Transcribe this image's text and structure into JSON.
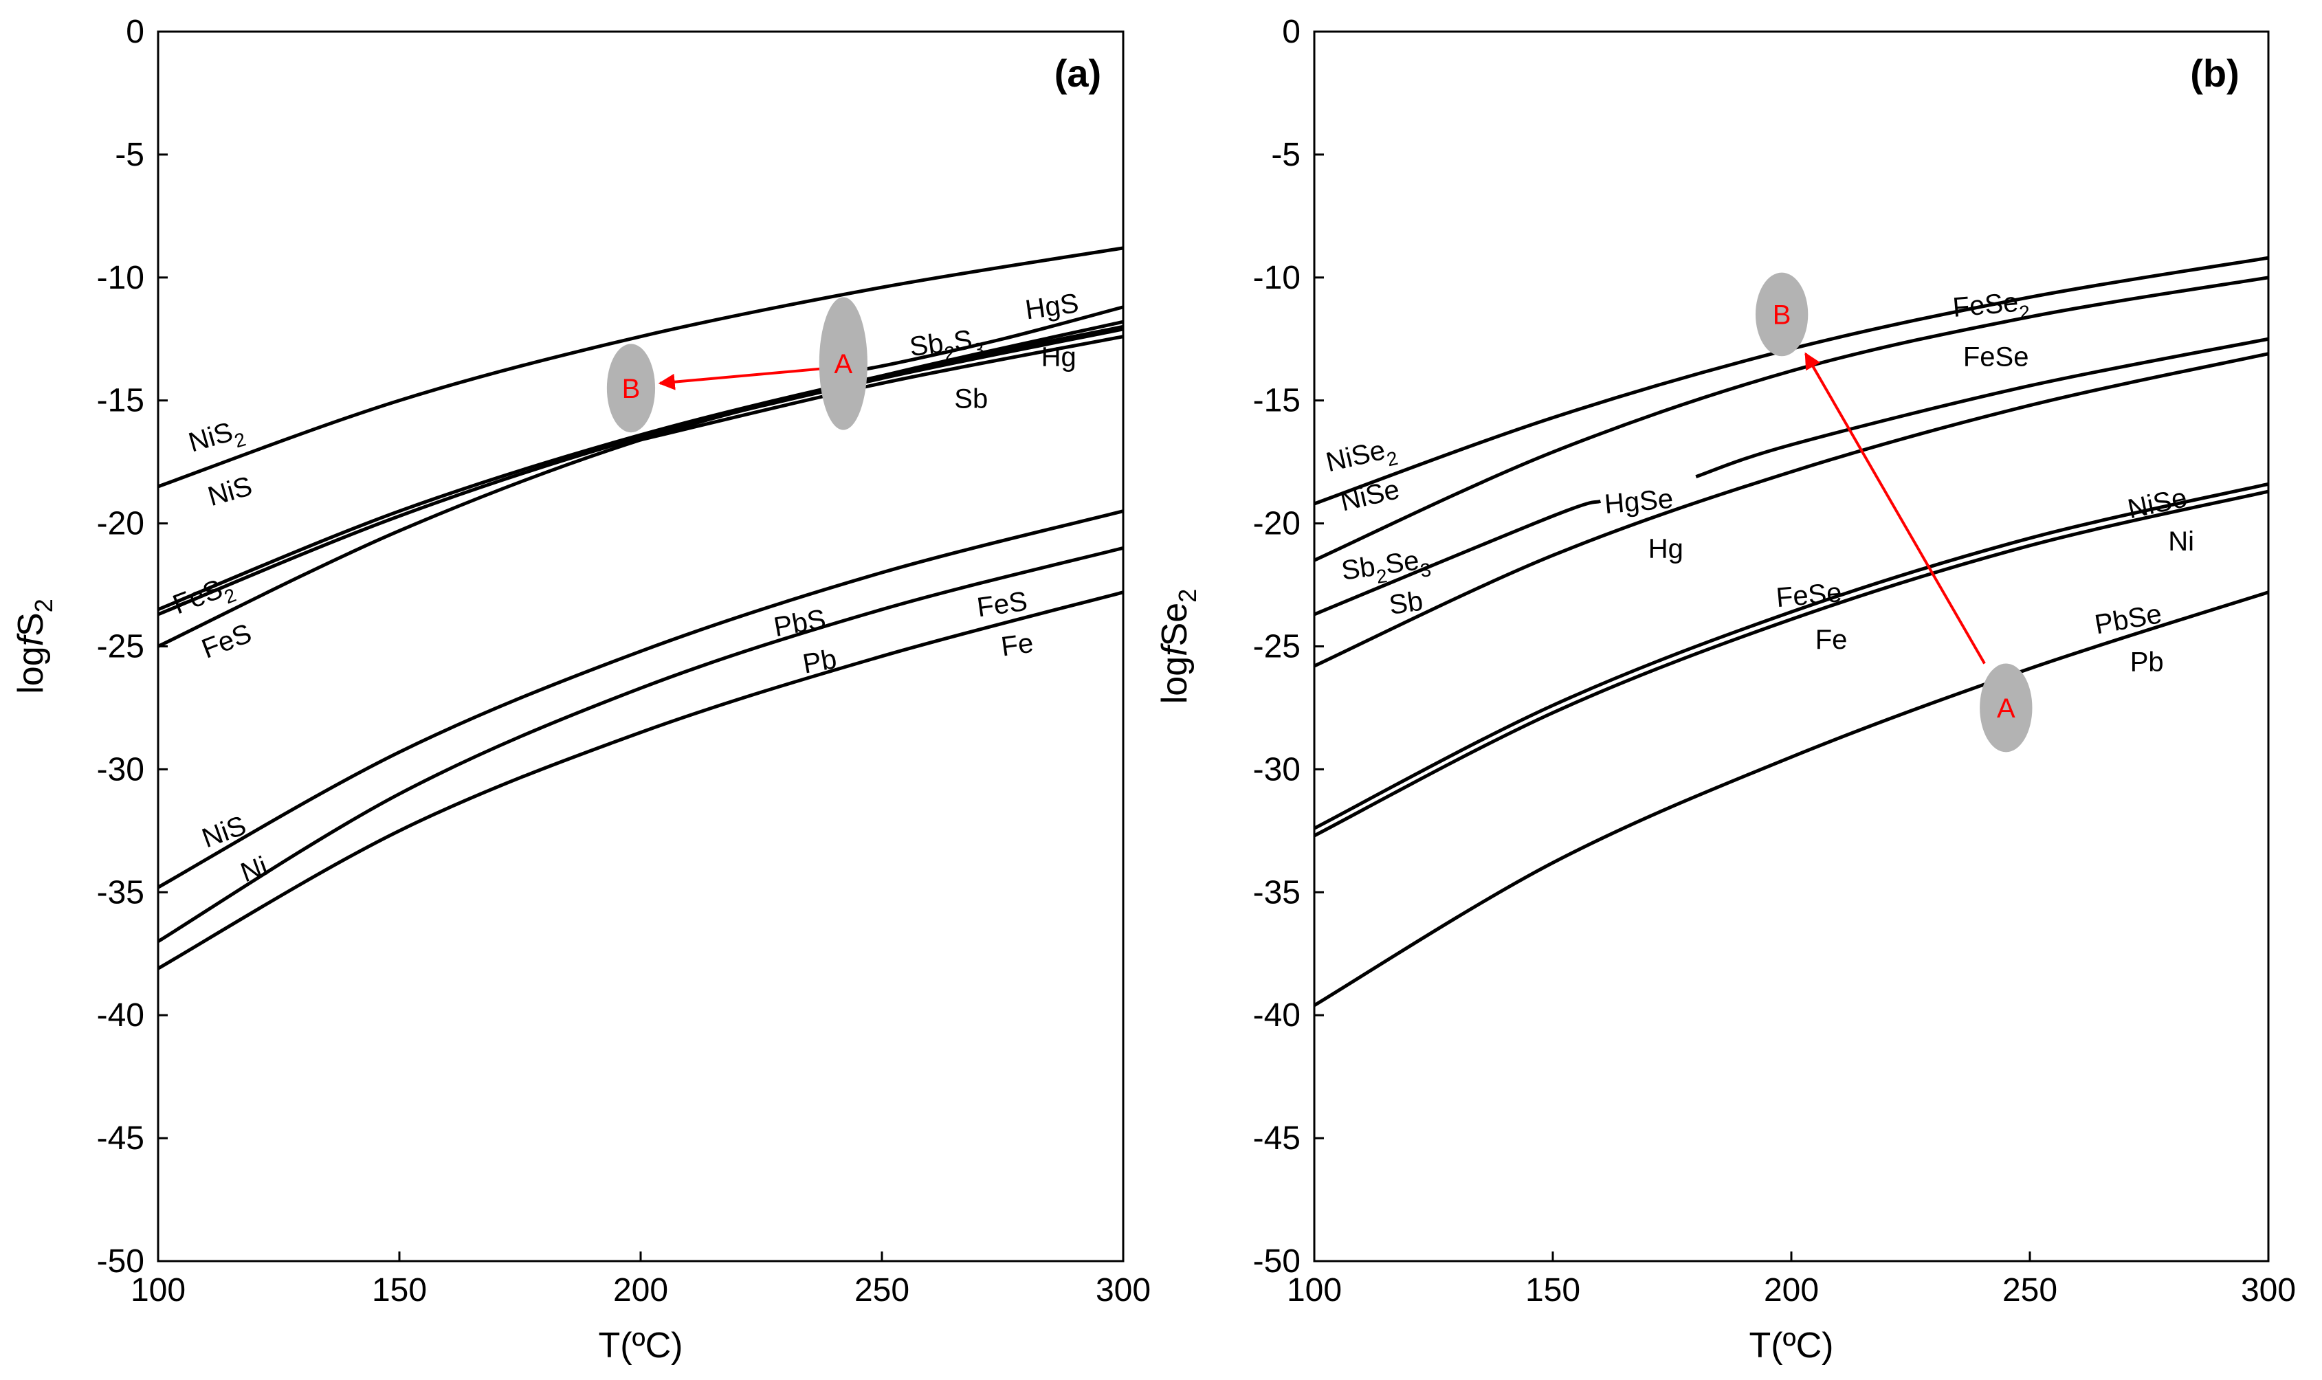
{
  "chart_data": [
    {
      "type": "line",
      "panel_label": "(a)",
      "xlabel": "T(ºC)",
      "ylabel": {
        "prefix": "log",
        "var": "f",
        "species": "S",
        "sub": "2"
      },
      "xlim": [
        100,
        300
      ],
      "ylim": [
        -50,
        0
      ],
      "xticks": [
        "100",
        "150",
        "200",
        "250",
        "300"
      ],
      "yticks": [
        "0",
        "-5",
        "-10",
        "-15",
        "-20",
        "-25",
        "-30",
        "-35",
        "-40",
        "-45",
        "-50"
      ],
      "series": [
        {
          "name": "NiS2/NiS",
          "x": [
            100,
            150,
            200,
            250,
            300
          ],
          "y": [
            -18.5,
            -15.0,
            -12.4,
            -10.4,
            -8.8
          ]
        },
        {
          "name": "FeS2/FeS",
          "x": [
            100,
            150,
            200,
            250,
            300
          ],
          "y": [
            -23.7,
            -19.7,
            -16.5,
            -14.1,
            -12.1
          ]
        },
        {
          "name": "FeS2/FeS (2)",
          "x": [
            100,
            150,
            200,
            250,
            300
          ],
          "y": [
            -23.5,
            -19.5,
            -16.4,
            -14.0,
            -12.0
          ]
        },
        {
          "name": "Sb2S3/Sb",
          "x": [
            100,
            150,
            200,
            250,
            300
          ],
          "y": [
            -25.0,
            -20.3,
            -16.6,
            -14.0,
            -11.8
          ]
        },
        {
          "name": "HgS/Hg",
          "x": [
            240,
            250,
            275,
            300
          ],
          "y": [
            -13.9,
            -13.6,
            -12.5,
            -11.2
          ]
        },
        {
          "name": "Sb (lower)",
          "x": [
            200,
            250,
            300
          ],
          "y": [
            -16.6,
            -14.3,
            -12.4
          ]
        },
        {
          "name": "NiS/Ni",
          "x": [
            100,
            150,
            200,
            250,
            300
          ],
          "y": [
            -34.8,
            -29.3,
            -25.2,
            -22.0,
            -19.5
          ]
        },
        {
          "name": "PbS/Pb",
          "x": [
            100,
            150,
            200,
            250,
            300
          ],
          "y": [
            -37.0,
            -31.0,
            -26.7,
            -23.5,
            -21.0
          ]
        },
        {
          "name": "FeS/Fe",
          "x": [
            100,
            150,
            200,
            250,
            300
          ],
          "y": [
            -38.1,
            -32.5,
            -28.5,
            -25.4,
            -22.8
          ]
        }
      ],
      "labels": [
        {
          "text": "NiS",
          "sub": "2",
          "x": 107,
          "y": -17.1,
          "rotate": -16
        },
        {
          "text": "NiS",
          "sub": "",
          "x": 111,
          "y": -19.3,
          "rotate": -16
        },
        {
          "text": "FeS",
          "sub": "2",
          "x": 104,
          "y": -23.7,
          "rotate": -21
        },
        {
          "text": "FeS",
          "sub": "",
          "x": 110,
          "y": -25.5,
          "rotate": -21
        },
        {
          "text": "Sb",
          "sub": "2",
          "text2": "S",
          "sub2": "3",
          "x": 256,
          "y": -13.2,
          "rotate": -7
        },
        {
          "text": "Sb",
          "sub": "",
          "x": 265,
          "y": -15.3,
          "rotate": 0
        },
        {
          "text": "HgS",
          "sub": "",
          "x": 280,
          "y": -11.7,
          "rotate": -8
        },
        {
          "text": "Hg",
          "sub": "",
          "x": 283,
          "y": -13.6,
          "rotate": 0
        },
        {
          "text": "PbS",
          "sub": "",
          "x": 228,
          "y": -24.6,
          "rotate": -10
        },
        {
          "text": "Pb",
          "sub": "",
          "x": 234,
          "y": -26.1,
          "rotate": -10
        },
        {
          "text": "FeS",
          "sub": "",
          "x": 270,
          "y": -23.8,
          "rotate": -8
        },
        {
          "text": "Fe",
          "sub": "",
          "x": 275,
          "y": -25.4,
          "rotate": -8
        },
        {
          "text": "NiS",
          "sub": "",
          "x": 110,
          "y": -33.2,
          "rotate": -20
        },
        {
          "text": "Ni",
          "sub": "",
          "x": 118,
          "y": -34.6,
          "rotate": -20
        }
      ],
      "markers": [
        {
          "label": "A",
          "x": 242,
          "y": -13.5,
          "rx": 5,
          "ry": 2.7
        },
        {
          "label": "B",
          "x": 198,
          "y": -14.5,
          "rx": 5,
          "ry": 1.8
        }
      ],
      "arrow": {
        "from": [
          238,
          -13.7
        ],
        "to": [
          204,
          -14.3
        ]
      }
    },
    {
      "type": "line",
      "panel_label": "(b)",
      "xlabel": "T(ºC)",
      "ylabel": {
        "prefix": "log",
        "var": "f",
        "species": "Se",
        "sub": "2"
      },
      "xlim": [
        100,
        300
      ],
      "ylim": [
        -50,
        0
      ],
      "xticks": [
        "100",
        "150",
        "200",
        "250",
        "300"
      ],
      "yticks": [
        "0",
        "-5",
        "-10",
        "-15",
        "-20",
        "-25",
        "-30",
        "-35",
        "-40",
        "-45",
        "-50"
      ],
      "series": [
        {
          "name": "NiSe2/NiSe",
          "x": [
            100,
            150,
            200,
            250,
            300
          ],
          "y": [
            -19.2,
            -15.7,
            -12.9,
            -10.8,
            -9.2
          ]
        },
        {
          "name": "FeSe2/FeSe",
          "x": [
            100,
            150,
            200,
            250,
            300
          ],
          "y": [
            -21.5,
            -17.1,
            -13.8,
            -11.6,
            -10.0
          ]
        },
        {
          "name": "Sb2Se3/Sb",
          "x": [
            100,
            150,
            160
          ],
          "y": [
            -23.7,
            -19.7,
            -19.1
          ]
        },
        {
          "name": "HgSe/Hg",
          "x": [
            180,
            200,
            250,
            300
          ],
          "y": [
            -18.1,
            -16.8,
            -14.4,
            -12.5
          ]
        },
        {
          "name": "Sb2Se3/Sb (lower)",
          "x": [
            100,
            150,
            200,
            250,
            300
          ],
          "y": [
            -25.8,
            -21.3,
            -17.9,
            -15.2,
            -13.1
          ]
        },
        {
          "name": "NiSe/Ni",
          "x": [
            100,
            150,
            200,
            250,
            300
          ],
          "y": [
            -32.4,
            -27.4,
            -23.6,
            -20.6,
            -18.4
          ]
        },
        {
          "name": "FeSe/Fe",
          "x": [
            100,
            150,
            200,
            250,
            300
          ],
          "y": [
            -32.7,
            -27.7,
            -23.9,
            -20.9,
            -18.7
          ]
        },
        {
          "name": "PbSe/Pb",
          "x": [
            100,
            150,
            200,
            250,
            300
          ],
          "y": [
            -39.6,
            -33.8,
            -29.5,
            -25.9,
            -22.8
          ]
        }
      ],
      "labels": [
        {
          "text": "FeSe",
          "sub": "2",
          "x": 234,
          "y": -11.6,
          "rotate": -5
        },
        {
          "text": "FeSe",
          "sub": "",
          "x": 236,
          "y": -13.6,
          "rotate": 0
        },
        {
          "text": "NiSe",
          "sub": "2",
          "x": 103,
          "y": -17.9,
          "rotate": -13
        },
        {
          "text": "NiSe",
          "sub": "",
          "x": 106,
          "y": -19.5,
          "rotate": -13
        },
        {
          "text": "Sb",
          "sub": "2",
          "text2": "Se",
          "sub2": "3",
          "x": 106,
          "y": -22.3,
          "rotate": -8
        },
        {
          "text": "Sb",
          "sub": "",
          "x": 116,
          "y": -23.7,
          "rotate": -8
        },
        {
          "text": "HgSe",
          "sub": "",
          "x": 161,
          "y": -19.6,
          "rotate": -5
        },
        {
          "text": "Hg",
          "sub": "",
          "x": 170,
          "y": -21.4,
          "rotate": 0
        },
        {
          "text": "FeSe",
          "sub": "",
          "x": 197,
          "y": -23.4,
          "rotate": -5
        },
        {
          "text": "Fe",
          "sub": "",
          "x": 205,
          "y": -25.1,
          "rotate": 0
        },
        {
          "text": "NiSe",
          "sub": "",
          "x": 271,
          "y": -19.8,
          "rotate": -12
        },
        {
          "text": "Ni",
          "sub": "",
          "x": 279,
          "y": -21.1,
          "rotate": 0
        },
        {
          "text": "PbSe",
          "sub": "",
          "x": 264,
          "y": -24.5,
          "rotate": -10
        },
        {
          "text": "Pb",
          "sub": "",
          "x": 271,
          "y": -26.0,
          "rotate": 0
        }
      ],
      "markers": [
        {
          "label": "A",
          "x": 245,
          "y": -27.5,
          "rx": 5.5,
          "ry": 1.8
        },
        {
          "label": "B",
          "x": 198,
          "y": -11.5,
          "rx": 5.5,
          "ry": 1.7
        }
      ],
      "arrow": {
        "from": [
          240.5,
          -25.7
        ],
        "to": [
          203,
          -13.1
        ]
      }
    }
  ],
  "colors": {
    "marker_fill": "#b3b3b3",
    "marker_text": "#ff0000",
    "arrow": "#ff0000",
    "line": "#000000"
  }
}
